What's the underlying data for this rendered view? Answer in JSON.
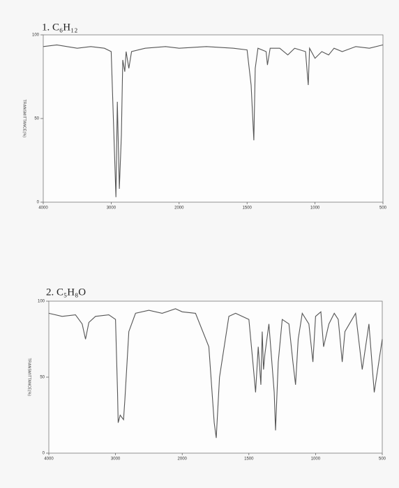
{
  "chart_data": [
    {
      "type": "line",
      "title": "1. C₆H₁₂",
      "y_label": "TRANSMITTANCE(%)",
      "xlim": [
        4000,
        500
      ],
      "xticks": [
        4000,
        3000,
        2000,
        1500,
        1000,
        500
      ],
      "ylim": [
        0,
        100
      ],
      "yticks": [
        0,
        50,
        100
      ],
      "series": [
        {
          "color": "#555555",
          "x": [
            4000,
            3800,
            3500,
            3300,
            3100,
            3000,
            2960,
            2930,
            2910,
            2880,
            2850,
            2830,
            2800,
            2780,
            2740,
            2700,
            2500,
            2200,
            2000,
            1800,
            1600,
            1500,
            1470,
            1450,
            1440,
            1420,
            1360,
            1350,
            1330,
            1260,
            1200,
            1150,
            1070,
            1050,
            1040,
            1000,
            950,
            900,
            860,
            800,
            700,
            600,
            500
          ],
          "values": [
            93,
            94,
            92,
            93,
            92,
            90,
            40,
            3,
            60,
            8,
            40,
            85,
            78,
            90,
            80,
            90,
            92,
            93,
            92,
            93,
            92,
            91,
            70,
            37,
            80,
            92,
            90,
            82,
            92,
            92,
            88,
            92,
            90,
            70,
            92,
            86,
            90,
            88,
            92,
            90,
            93,
            92,
            94
          ]
        }
      ]
    },
    {
      "type": "line",
      "title": "2. C₅H₈O",
      "y_label": "TRANSMITTANCE(%)",
      "xlim": [
        4000,
        500
      ],
      "xticks": [
        4000,
        3000,
        2000,
        1500,
        1000,
        500
      ],
      "ylim": [
        0,
        100
      ],
      "yticks": [
        0,
        50,
        100
      ],
      "series": [
        {
          "color": "#555555",
          "x": [
            4000,
            3800,
            3600,
            3500,
            3450,
            3400,
            3300,
            3100,
            3000,
            2970,
            2960,
            2930,
            2880,
            2860,
            2800,
            2700,
            2500,
            2300,
            2100,
            2000,
            1900,
            1800,
            1760,
            1745,
            1720,
            1650,
            1600,
            1500,
            1470,
            1450,
            1430,
            1410,
            1400,
            1390,
            1380,
            1350,
            1310,
            1300,
            1280,
            1250,
            1200,
            1170,
            1150,
            1130,
            1100,
            1050,
            1020,
            1000,
            960,
            940,
            900,
            860,
            830,
            800,
            780,
            700,
            650,
            600,
            560,
            500
          ],
          "values": [
            92,
            90,
            91,
            85,
            75,
            86,
            90,
            91,
            88,
            40,
            20,
            25,
            22,
            35,
            80,
            92,
            94,
            92,
            95,
            93,
            92,
            70,
            20,
            10,
            50,
            90,
            92,
            88,
            60,
            40,
            70,
            45,
            80,
            55,
            65,
            85,
            40,
            15,
            60,
            88,
            85,
            60,
            45,
            75,
            92,
            85,
            60,
            90,
            93,
            70,
            85,
            92,
            88,
            60,
            80,
            92,
            55,
            85,
            40,
            75
          ]
        }
      ]
    }
  ]
}
